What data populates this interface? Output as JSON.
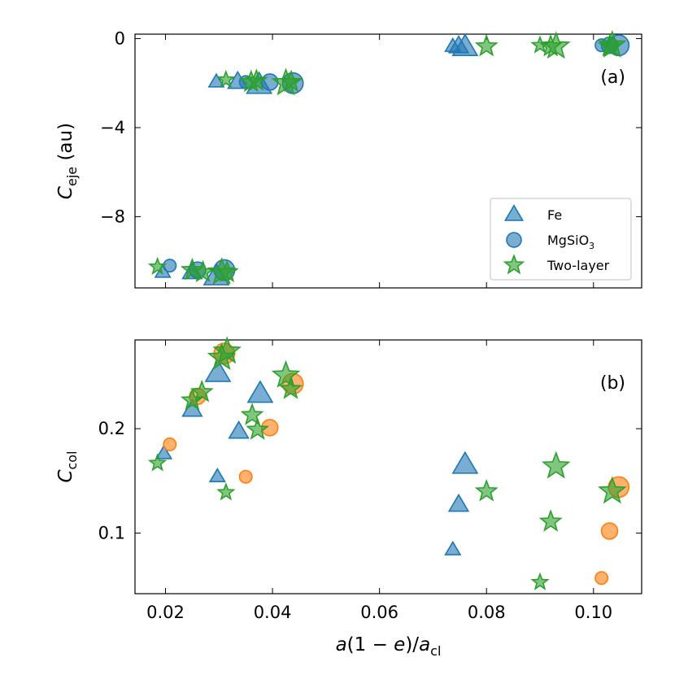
{
  "chart_data": [
    {
      "id": "a",
      "type": "scatter",
      "panel_label": "(a)",
      "ylabel_main": "C",
      "ylabel_sub": "eje",
      "ylabel_suffix": " (au)",
      "ylim": [
        -11.2,
        0.2
      ],
      "yticks": [
        0,
        -4,
        -8
      ],
      "ytick_labels": [
        "0",
        "−4",
        "−8"
      ],
      "legend_position": "lower-right",
      "series": [
        {
          "name": "Fe",
          "marker": "triangle",
          "points": [
            {
              "x": 0.0195,
              "y": -10.5,
              "s": 0.3
            },
            {
              "x": 0.025,
              "y": -10.5,
              "s": 0.55
            },
            {
              "x": 0.0295,
              "y": -10.7,
              "s": 0.85
            },
            {
              "x": 0.0295,
              "y": -1.95,
              "s": 0.3
            },
            {
              "x": 0.0335,
              "y": -1.95,
              "s": 0.55
            },
            {
              "x": 0.0375,
              "y": -2.1,
              "s": 0.85
            },
            {
              "x": 0.0737,
              "y": -0.35,
              "s": 0.3
            },
            {
              "x": 0.0748,
              "y": -0.35,
              "s": 0.55
            },
            {
              "x": 0.076,
              "y": -0.4,
              "s": 0.85
            }
          ]
        },
        {
          "name": "MgSiO",
          "name_sub": "3",
          "marker": "circle",
          "points": [
            {
              "x": 0.0208,
              "y": -10.2,
              "s": 0.3
            },
            {
              "x": 0.026,
              "y": -10.4,
              "s": 0.55
            },
            {
              "x": 0.031,
              "y": -10.4,
              "s": 0.85
            },
            {
              "x": 0.035,
              "y": -1.95,
              "s": 0.3
            },
            {
              "x": 0.0395,
              "y": -1.95,
              "s": 0.55
            },
            {
              "x": 0.0438,
              "y": -2.0,
              "s": 0.85
            },
            {
              "x": 0.1015,
              "y": -0.3,
              "s": 0.3
            },
            {
              "x": 0.103,
              "y": -0.3,
              "s": 0.55
            },
            {
              "x": 0.1047,
              "y": -0.3,
              "s": 0.85
            }
          ]
        },
        {
          "name": "Two-layer",
          "marker": "star",
          "points": [
            {
              "x": 0.0185,
              "y": -10.25,
              "s": 0.3
            },
            {
              "x": 0.025,
              "y": -10.4,
              "s": 0.55
            },
            {
              "x": 0.027,
              "y": -10.5,
              "s": 0.55
            },
            {
              "x": 0.0305,
              "y": -10.5,
              "s": 0.85
            },
            {
              "x": 0.0315,
              "y": -10.5,
              "s": 0.55
            },
            {
              "x": 0.0313,
              "y": -1.85,
              "s": 0.3
            },
            {
              "x": 0.036,
              "y": -1.95,
              "s": 0.55
            },
            {
              "x": 0.037,
              "y": -1.9,
              "s": 0.55
            },
            {
              "x": 0.0425,
              "y": -2.0,
              "s": 0.85
            },
            {
              "x": 0.0435,
              "y": -1.95,
              "s": 0.55
            },
            {
              "x": 0.08,
              "y": -0.35,
              "s": 0.55
            },
            {
              "x": 0.09,
              "y": -0.3,
              "s": 0.3
            },
            {
              "x": 0.092,
              "y": -0.35,
              "s": 0.55
            },
            {
              "x": 0.093,
              "y": -0.35,
              "s": 0.85
            },
            {
              "x": 0.103,
              "y": -0.35,
              "s": 0.55
            },
            {
              "x": 0.1035,
              "y": -0.3,
              "s": 0.85
            }
          ]
        }
      ]
    },
    {
      "id": "b",
      "type": "scatter",
      "panel_label": "(b)",
      "ylabel_main": "C",
      "ylabel_sub": "col",
      "ylabel_suffix": "",
      "ylim": [
        0.042,
        0.285
      ],
      "yticks": [
        0.1,
        0.2
      ],
      "ytick_labels": [
        "0.1",
        "0.2"
      ],
      "xlabel": "a(1 − e)/a",
      "xlabel_sub": "cl",
      "xlim": [
        0.0143,
        0.109
      ],
      "xticks": [
        0.02,
        0.04,
        0.06,
        0.08,
        0.1
      ],
      "xtick_labels": [
        "0.02",
        "0.04",
        "0.06",
        "0.08",
        "0.10"
      ],
      "series": [
        {
          "name": "Fe",
          "marker": "triangle",
          "points": [
            {
              "x": 0.0197,
              "y": 0.176,
              "s": 0.3
            },
            {
              "x": 0.025,
              "y": 0.218,
              "s": 0.55
            },
            {
              "x": 0.0298,
              "y": 0.253,
              "s": 0.85
            },
            {
              "x": 0.0297,
              "y": 0.154,
              "s": 0.3
            },
            {
              "x": 0.0337,
              "y": 0.197,
              "s": 0.55
            },
            {
              "x": 0.0377,
              "y": 0.233,
              "s": 0.85
            },
            {
              "x": 0.0737,
              "y": 0.084,
              "s": 0.3
            },
            {
              "x": 0.0748,
              "y": 0.127,
              "s": 0.55
            },
            {
              "x": 0.076,
              "y": 0.165,
              "s": 0.85
            }
          ]
        },
        {
          "name": "MgSiO3",
          "marker": "circle",
          "points": [
            {
              "x": 0.0208,
              "y": 0.185,
              "s": 0.3
            },
            {
              "x": 0.026,
              "y": 0.231,
              "s": 0.55
            },
            {
              "x": 0.031,
              "y": 0.272,
              "s": 0.85
            },
            {
              "x": 0.035,
              "y": 0.154,
              "s": 0.3
            },
            {
              "x": 0.0395,
              "y": 0.201,
              "s": 0.55
            },
            {
              "x": 0.0438,
              "y": 0.243,
              "s": 0.85
            },
            {
              "x": 0.1015,
              "y": 0.057,
              "s": 0.3
            },
            {
              "x": 0.103,
              "y": 0.102,
              "s": 0.55
            },
            {
              "x": 0.1047,
              "y": 0.144,
              "s": 0.85
            }
          ]
        },
        {
          "name": "Two-layer",
          "marker": "star",
          "points": [
            {
              "x": 0.0185,
              "y": 0.167,
              "s": 0.3
            },
            {
              "x": 0.025,
              "y": 0.227,
              "s": 0.55
            },
            {
              "x": 0.0268,
              "y": 0.235,
              "s": 0.55
            },
            {
              "x": 0.0305,
              "y": 0.268,
              "s": 0.85
            },
            {
              "x": 0.0315,
              "y": 0.274,
              "s": 0.85
            },
            {
              "x": 0.0313,
              "y": 0.139,
              "s": 0.3
            },
            {
              "x": 0.0362,
              "y": 0.213,
              "s": 0.55
            },
            {
              "x": 0.0372,
              "y": 0.199,
              "s": 0.55
            },
            {
              "x": 0.0425,
              "y": 0.251,
              "s": 0.85
            },
            {
              "x": 0.0434,
              "y": 0.238,
              "s": 0.55
            },
            {
              "x": 0.08,
              "y": 0.14,
              "s": 0.55
            },
            {
              "x": 0.09,
              "y": 0.053,
              "s": 0.3
            },
            {
              "x": 0.092,
              "y": 0.111,
              "s": 0.55
            },
            {
              "x": 0.093,
              "y": 0.164,
              "s": 0.85
            },
            {
              "x": 0.1035,
              "y": 0.14,
              "s": 0.85
            }
          ]
        }
      ]
    }
  ],
  "colors": {
    "Fe": "#1f77b4",
    "MgSiO3": "#ff7f0e",
    "Two-layer": "#2ca02c"
  }
}
